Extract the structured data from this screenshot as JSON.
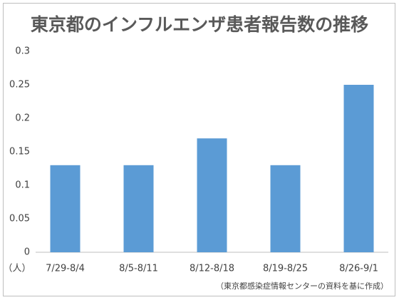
{
  "chart_data": {
    "type": "bar",
    "title": "東京都のインフルエンザ患者報告数の推移",
    "categories": [
      "7/29-8/4",
      "8/5-8/11",
      "8/12-8/18",
      "8/19-8/25",
      "8/26-9/1"
    ],
    "values": [
      0.13,
      0.13,
      0.17,
      0.13,
      0.25
    ],
    "color": "#5b9bd5",
    "ylim": [
      0,
      0.3
    ],
    "yticks": [
      0,
      0.05,
      0.1,
      0.15,
      0.2,
      0.25,
      0.3
    ],
    "grid": false,
    "y_unit_label": "（人）",
    "source": "（東京都感染症情報センターの資料を基に作成）"
  }
}
